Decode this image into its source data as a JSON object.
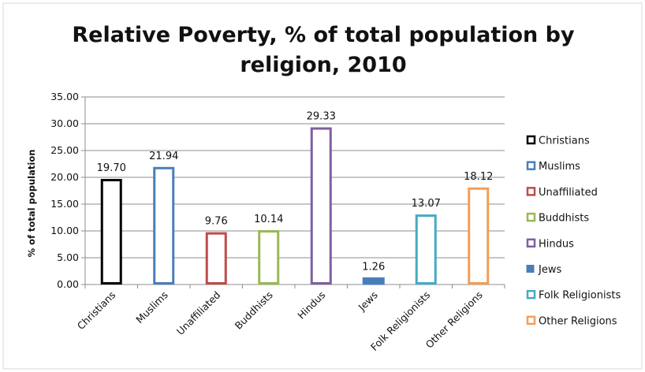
{
  "chart_data": {
    "type": "bar",
    "title_lines": [
      "Relative Poverty, % of total population by",
      "religion, 2010"
    ],
    "xlabel": "",
    "ylabel": "% of total population",
    "ylim": [
      0,
      35
    ],
    "yticks": [
      "0.00",
      "5.00",
      "10.00",
      "15.00",
      "20.00",
      "25.00",
      "30.00",
      "35.00"
    ],
    "grid": true,
    "legend_position": "right",
    "categories": [
      "Christians",
      "Muslims",
      "Unaffiliated",
      "Buddhists",
      "Hindus",
      "Jews",
      "Folk Religionists",
      "Other Religions"
    ],
    "values": [
      19.7,
      21.94,
      9.76,
      10.14,
      29.33,
      1.26,
      13.07,
      18.12
    ],
    "value_labels": [
      "19.70",
      "21.94",
      "9.76",
      "10.14",
      "29.33",
      "1.26",
      "13.07",
      "18.12"
    ],
    "colors": [
      "#000000",
      "#4a7ebb",
      "#be4b48",
      "#98b954",
      "#7d60a0",
      "#4a7ebb",
      "#46aac5",
      "#f59d56"
    ],
    "filled": [
      false,
      false,
      false,
      false,
      false,
      true,
      false,
      false
    ],
    "legend": [
      "Christians",
      "Muslims",
      "Unaffiliated",
      "Buddhists",
      "Hindus",
      "Jews",
      "Folk Religionists",
      "Other Religions"
    ]
  }
}
